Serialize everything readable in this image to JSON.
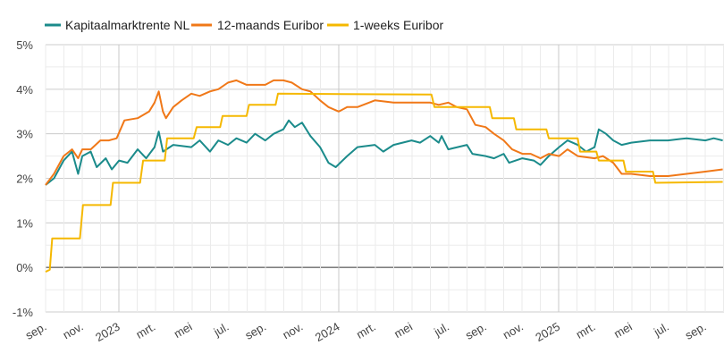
{
  "chart_data": {
    "type": "line",
    "title": "",
    "xlabel": "",
    "ylabel": "",
    "ylim": [
      -1,
      5
    ],
    "xlim": [
      "2022-09-01",
      "2025-09-30"
    ],
    "grid": true,
    "legend_placement": "top-left",
    "y_ticks": [
      "-1%",
      "0%",
      "1%",
      "2%",
      "3%",
      "4%",
      "5%"
    ],
    "x_ticks": [
      {
        "date": "2022-09-01",
        "label": "sep."
      },
      {
        "date": "2022-11-01",
        "label": "nov."
      },
      {
        "date": "2023-01-01",
        "label": "2023"
      },
      {
        "date": "2023-03-01",
        "label": "mrt."
      },
      {
        "date": "2023-05-01",
        "label": "mei"
      },
      {
        "date": "2023-07-01",
        "label": "jul."
      },
      {
        "date": "2023-09-01",
        "label": "sep."
      },
      {
        "date": "2023-11-01",
        "label": "nov."
      },
      {
        "date": "2024-01-01",
        "label": "2024"
      },
      {
        "date": "2024-03-01",
        "label": "mrt."
      },
      {
        "date": "2024-05-01",
        "label": "mei"
      },
      {
        "date": "2024-07-01",
        "label": "jul."
      },
      {
        "date": "2024-09-01",
        "label": "sep."
      },
      {
        "date": "2024-11-01",
        "label": "nov."
      },
      {
        "date": "2025-01-01",
        "label": "2025"
      },
      {
        "date": "2025-03-01",
        "label": "mrt."
      },
      {
        "date": "2025-05-01",
        "label": "mei"
      },
      {
        "date": "2025-07-01",
        "label": "jul."
      },
      {
        "date": "2025-09-01",
        "label": "sep."
      }
    ],
    "series": [
      {
        "name": "Kapitaalmarktrente NL",
        "color": "#1b8b8b",
        "points": [
          [
            "2022-09-01",
            1.85
          ],
          [
            "2022-09-15",
            2.0
          ],
          [
            "2022-10-01",
            2.4
          ],
          [
            "2022-10-15",
            2.6
          ],
          [
            "2022-10-25",
            2.1
          ],
          [
            "2022-11-01",
            2.5
          ],
          [
            "2022-11-15",
            2.6
          ],
          [
            "2022-11-25",
            2.25
          ],
          [
            "2022-12-10",
            2.45
          ],
          [
            "2022-12-20",
            2.2
          ],
          [
            "2023-01-01",
            2.4
          ],
          [
            "2023-01-15",
            2.35
          ],
          [
            "2023-02-01",
            2.65
          ],
          [
            "2023-02-15",
            2.45
          ],
          [
            "2023-03-01",
            2.7
          ],
          [
            "2023-03-08",
            3.05
          ],
          [
            "2023-03-15",
            2.6
          ],
          [
            "2023-04-01",
            2.75
          ],
          [
            "2023-05-01",
            2.7
          ],
          [
            "2023-05-15",
            2.85
          ],
          [
            "2023-06-01",
            2.6
          ],
          [
            "2023-06-15",
            2.85
          ],
          [
            "2023-07-01",
            2.75
          ],
          [
            "2023-07-15",
            2.9
          ],
          [
            "2023-08-01",
            2.8
          ],
          [
            "2023-08-15",
            3.0
          ],
          [
            "2023-09-01",
            2.85
          ],
          [
            "2023-09-15",
            3.0
          ],
          [
            "2023-10-01",
            3.1
          ],
          [
            "2023-10-10",
            3.3
          ],
          [
            "2023-10-20",
            3.15
          ],
          [
            "2023-11-01",
            3.25
          ],
          [
            "2023-11-15",
            2.95
          ],
          [
            "2023-12-01",
            2.7
          ],
          [
            "2023-12-15",
            2.35
          ],
          [
            "2023-12-27",
            2.25
          ],
          [
            "2024-01-15",
            2.5
          ],
          [
            "2024-02-01",
            2.7
          ],
          [
            "2024-03-01",
            2.75
          ],
          [
            "2024-03-15",
            2.6
          ],
          [
            "2024-04-01",
            2.75
          ],
          [
            "2024-05-01",
            2.85
          ],
          [
            "2024-05-15",
            2.8
          ],
          [
            "2024-06-01",
            2.95
          ],
          [
            "2024-06-15",
            2.8
          ],
          [
            "2024-06-20",
            2.95
          ],
          [
            "2024-07-01",
            2.65
          ],
          [
            "2024-08-01",
            2.75
          ],
          [
            "2024-08-10",
            2.55
          ],
          [
            "2024-09-01",
            2.5
          ],
          [
            "2024-09-15",
            2.45
          ],
          [
            "2024-10-01",
            2.55
          ],
          [
            "2024-10-10",
            2.35
          ],
          [
            "2024-11-01",
            2.45
          ],
          [
            "2024-11-20",
            2.4
          ],
          [
            "2024-12-01",
            2.3
          ],
          [
            "2024-12-15",
            2.5
          ],
          [
            "2025-01-01",
            2.7
          ],
          [
            "2025-01-15",
            2.85
          ],
          [
            "2025-02-01",
            2.75
          ],
          [
            "2025-02-15",
            2.6
          ],
          [
            "2025-03-01",
            2.7
          ],
          [
            "2025-03-08",
            3.1
          ],
          [
            "2025-03-20",
            3.0
          ],
          [
            "2025-04-01",
            2.85
          ],
          [
            "2025-04-15",
            2.75
          ],
          [
            "2025-05-01",
            2.8
          ],
          [
            "2025-06-01",
            2.85
          ],
          [
            "2025-07-01",
            2.85
          ],
          [
            "2025-08-01",
            2.9
          ],
          [
            "2025-09-01",
            2.85
          ],
          [
            "2025-09-15",
            2.9
          ],
          [
            "2025-09-30",
            2.85
          ]
        ]
      },
      {
        "name": "12-maands Euribor",
        "color": "#f07818",
        "points": [
          [
            "2022-09-01",
            1.85
          ],
          [
            "2022-09-15",
            2.1
          ],
          [
            "2022-10-01",
            2.5
          ],
          [
            "2022-10-15",
            2.65
          ],
          [
            "2022-10-25",
            2.45
          ],
          [
            "2022-11-01",
            2.65
          ],
          [
            "2022-11-15",
            2.65
          ],
          [
            "2022-12-01",
            2.85
          ],
          [
            "2022-12-15",
            2.85
          ],
          [
            "2022-12-28",
            2.9
          ],
          [
            "2023-01-10",
            3.3
          ],
          [
            "2023-02-01",
            3.35
          ],
          [
            "2023-02-20",
            3.5
          ],
          [
            "2023-03-01",
            3.7
          ],
          [
            "2023-03-08",
            3.95
          ],
          [
            "2023-03-15",
            3.5
          ],
          [
            "2023-03-20",
            3.35
          ],
          [
            "2023-04-01",
            3.6
          ],
          [
            "2023-04-15",
            3.75
          ],
          [
            "2023-05-01",
            3.9
          ],
          [
            "2023-05-15",
            3.85
          ],
          [
            "2023-06-01",
            3.95
          ],
          [
            "2023-06-15",
            4.0
          ],
          [
            "2023-07-01",
            4.15
          ],
          [
            "2023-07-15",
            4.2
          ],
          [
            "2023-08-01",
            4.1
          ],
          [
            "2023-08-15",
            4.1
          ],
          [
            "2023-09-01",
            4.1
          ],
          [
            "2023-09-15",
            4.2
          ],
          [
            "2023-10-01",
            4.2
          ],
          [
            "2023-10-15",
            4.15
          ],
          [
            "2023-11-01",
            4.0
          ],
          [
            "2023-11-15",
            3.95
          ],
          [
            "2023-12-01",
            3.75
          ],
          [
            "2023-12-15",
            3.6
          ],
          [
            "2024-01-01",
            3.5
          ],
          [
            "2024-01-15",
            3.6
          ],
          [
            "2024-02-01",
            3.6
          ],
          [
            "2024-03-01",
            3.75
          ],
          [
            "2024-04-01",
            3.7
          ],
          [
            "2024-05-01",
            3.7
          ],
          [
            "2024-06-01",
            3.7
          ],
          [
            "2024-06-15",
            3.65
          ],
          [
            "2024-07-01",
            3.7
          ],
          [
            "2024-07-15",
            3.6
          ],
          [
            "2024-08-01",
            3.55
          ],
          [
            "2024-08-15",
            3.2
          ],
          [
            "2024-09-01",
            3.15
          ],
          [
            "2024-09-15",
            3.0
          ],
          [
            "2024-10-01",
            2.85
          ],
          [
            "2024-10-15",
            2.65
          ],
          [
            "2024-11-01",
            2.55
          ],
          [
            "2024-11-15",
            2.55
          ],
          [
            "2024-12-01",
            2.45
          ],
          [
            "2024-12-15",
            2.55
          ],
          [
            "2025-01-01",
            2.5
          ],
          [
            "2025-01-15",
            2.65
          ],
          [
            "2025-02-01",
            2.5
          ],
          [
            "2025-03-01",
            2.45
          ],
          [
            "2025-03-15",
            2.5
          ],
          [
            "2025-04-01",
            2.35
          ],
          [
            "2025-04-15",
            2.1
          ],
          [
            "2025-05-01",
            2.1
          ],
          [
            "2025-06-01",
            2.05
          ],
          [
            "2025-07-01",
            2.05
          ],
          [
            "2025-08-01",
            2.1
          ],
          [
            "2025-09-01",
            2.15
          ],
          [
            "2025-09-30",
            2.2
          ]
        ]
      },
      {
        "name": "1-weeks Euribor",
        "color": "#f5b800",
        "points": [
          [
            "2022-09-01",
            -0.1
          ],
          [
            "2022-09-08",
            -0.05
          ],
          [
            "2022-09-12",
            0.65
          ],
          [
            "2022-10-28",
            0.65
          ],
          [
            "2022-11-02",
            1.4
          ],
          [
            "2022-12-18",
            1.4
          ],
          [
            "2022-12-22",
            1.9
          ],
          [
            "2023-02-05",
            1.9
          ],
          [
            "2023-02-10",
            2.4
          ],
          [
            "2023-03-18",
            2.4
          ],
          [
            "2023-03-22",
            2.9
          ],
          [
            "2023-05-05",
            2.9
          ],
          [
            "2023-05-10",
            3.15
          ],
          [
            "2023-06-18",
            3.15
          ],
          [
            "2023-06-22",
            3.4
          ],
          [
            "2023-08-01",
            3.4
          ],
          [
            "2023-08-05",
            3.65
          ],
          [
            "2023-09-18",
            3.65
          ],
          [
            "2023-09-22",
            3.9
          ],
          [
            "2024-06-03",
            3.88
          ],
          [
            "2024-06-08",
            3.6
          ],
          [
            "2024-09-08",
            3.6
          ],
          [
            "2024-09-12",
            3.35
          ],
          [
            "2024-10-18",
            3.35
          ],
          [
            "2024-10-22",
            3.1
          ],
          [
            "2024-12-11",
            3.1
          ],
          [
            "2024-12-15",
            2.9
          ],
          [
            "2025-02-01",
            2.9
          ],
          [
            "2025-02-05",
            2.6
          ],
          [
            "2025-03-04",
            2.6
          ],
          [
            "2025-03-08",
            2.4
          ],
          [
            "2025-04-18",
            2.4
          ],
          [
            "2025-04-22",
            2.15
          ],
          [
            "2025-06-06",
            2.15
          ],
          [
            "2025-06-10",
            1.9
          ],
          [
            "2025-09-30",
            1.92
          ]
        ]
      }
    ]
  }
}
